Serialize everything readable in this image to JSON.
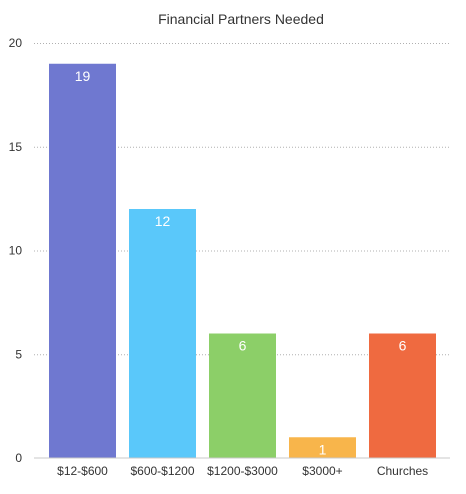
{
  "chart_data": {
    "type": "bar",
    "title": "Financial Partners Needed",
    "xlabel": "",
    "ylabel": "",
    "categories": [
      "$12-$600",
      "$600-$1200",
      "$1200-$3000",
      "$3000+",
      "Churches"
    ],
    "values": [
      19,
      12,
      6,
      1,
      6
    ],
    "data_labels": [
      "19",
      "12",
      "6",
      "1",
      "6"
    ],
    "colors": [
      "#6f78d0",
      "#5ac8fa",
      "#8ccf68",
      "#f8b54b",
      "#ef6a40"
    ],
    "ylim": [
      0,
      20
    ],
    "yticks": [
      0,
      5,
      10,
      15,
      20
    ],
    "ytick_labels": [
      "0",
      "5",
      "10",
      "15",
      "20"
    ],
    "grid": true,
    "legend": "none"
  }
}
